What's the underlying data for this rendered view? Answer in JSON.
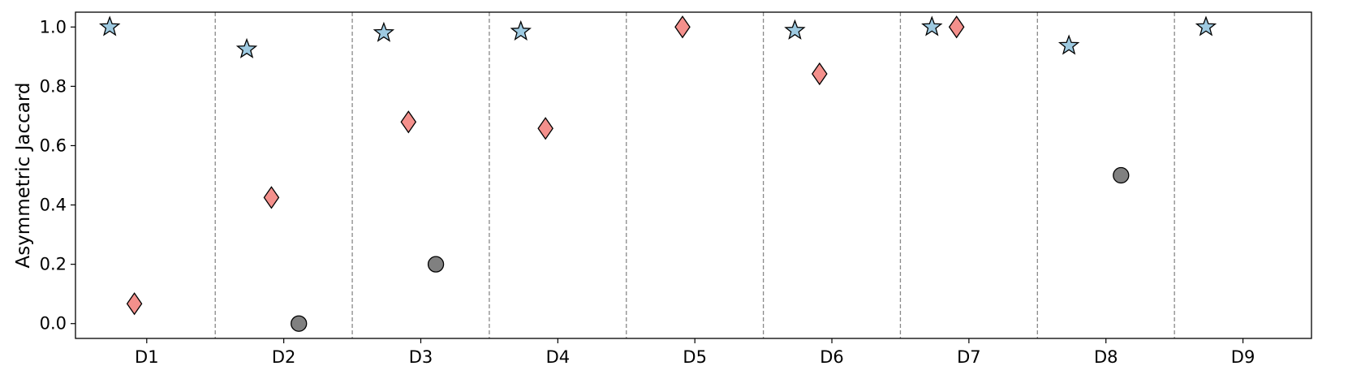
{
  "chart_data": {
    "type": "scatter",
    "title": "",
    "xlabel": "",
    "ylabel": "Asymmetric Jaccard",
    "categories": [
      "D1",
      "D2",
      "D3",
      "D4",
      "D5",
      "D6",
      "D7",
      "D8",
      "D9"
    ],
    "ylim": [
      -0.05,
      1.05
    ],
    "yticks": [
      "0.0",
      "0.2",
      "0.4",
      "0.6",
      "0.8",
      "1.0"
    ],
    "grid": false,
    "category_separators": "dashed",
    "series": [
      {
        "marker": "star",
        "color": "#9ecae1",
        "offset": -0.27,
        "values": [
          1.0,
          0.925,
          0.98,
          0.985,
          null,
          0.988,
          1.0,
          0.937,
          1.0
        ]
      },
      {
        "marker": "diamond",
        "color": "#f4908c",
        "offset": -0.09,
        "values": [
          0.067,
          0.425,
          0.68,
          0.658,
          1.0,
          0.842,
          1.0,
          null,
          null
        ]
      },
      {
        "marker": "circle",
        "color": "#808080",
        "offset": 0.11,
        "values": [
          null,
          0.0,
          0.2,
          null,
          null,
          null,
          null,
          0.5,
          null
        ]
      }
    ]
  }
}
